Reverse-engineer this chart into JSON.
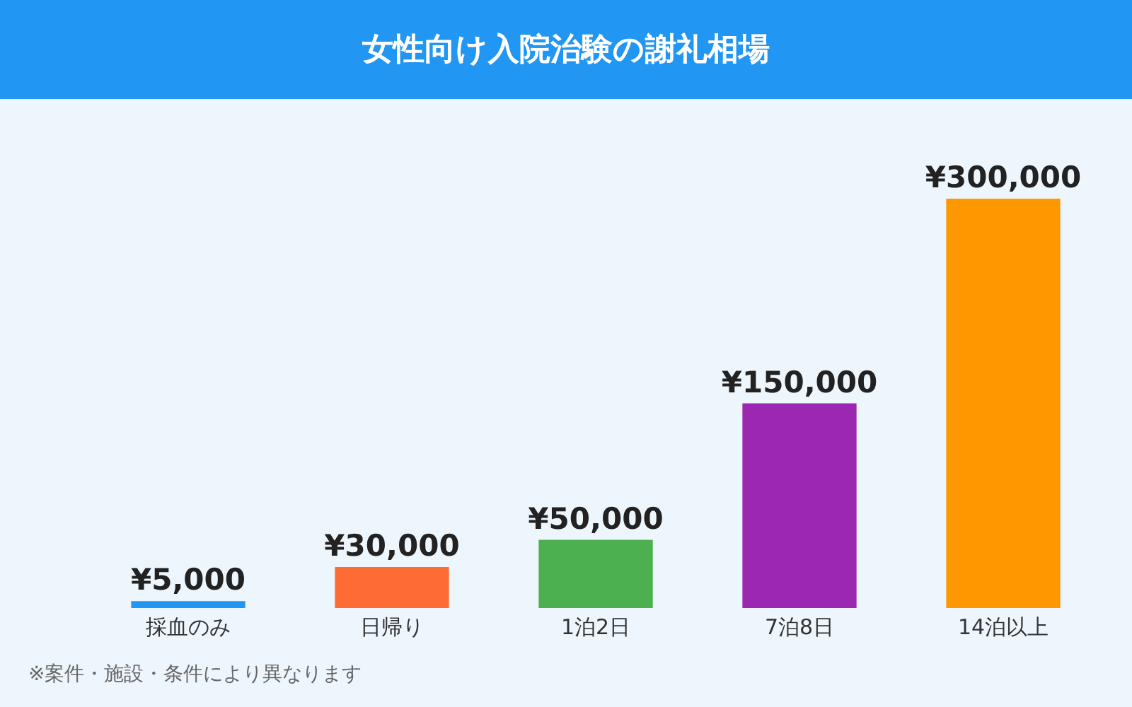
{
  "chart_data": {
    "type": "bar",
    "title": "女性向け入院治験の謝礼相場",
    "categories": [
      "採血のみ",
      "日帰り",
      "1泊2日",
      "7泊8日",
      "14泊以上"
    ],
    "values": [
      5000,
      30000,
      50000,
      150000,
      300000
    ],
    "colors": [
      "#2196f3",
      "#ff6b35",
      "#4caf50",
      "#9c27b0",
      "#ff9800"
    ],
    "value_labels": [
      "¥5,000",
      "¥30,000",
      "¥50,000",
      "¥150,000",
      "¥300,000"
    ],
    "grid": false,
    "annotations": [
      "※案件・施設・条件により異なります"
    ]
  }
}
